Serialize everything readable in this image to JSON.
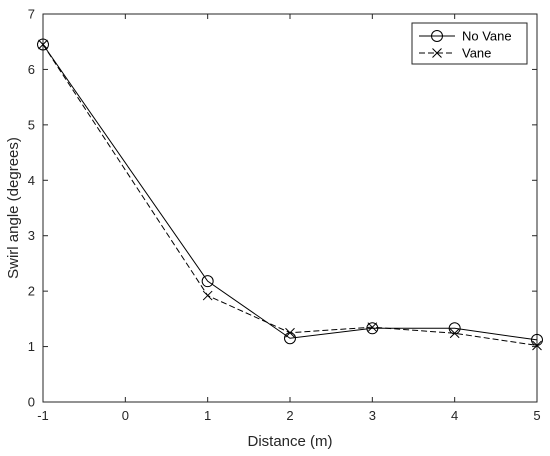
{
  "chart_data": {
    "type": "line",
    "xlabel": "Distance (m)",
    "ylabel": "Swirl angle (degrees)",
    "xlim": [
      -1,
      5
    ],
    "ylim": [
      0,
      7
    ],
    "xticks": [
      -1,
      0,
      1,
      2,
      3,
      4,
      5
    ],
    "yticks": [
      0,
      1,
      2,
      3,
      4,
      5,
      6,
      7
    ],
    "grid": false,
    "legend_position": "top-right",
    "x": [
      -1,
      1,
      2,
      3,
      4,
      5
    ],
    "series": [
      {
        "name": "No Vane",
        "values": [
          6.45,
          2.18,
          1.15,
          1.33,
          1.33,
          1.12
        ],
        "marker": "circle",
        "line_style": "solid",
        "color": "#000000"
      },
      {
        "name": "Vane",
        "values": [
          6.45,
          1.92,
          1.25,
          1.35,
          1.24,
          1.02
        ],
        "marker": "x",
        "line_style": "dashed",
        "color": "#000000"
      }
    ]
  }
}
